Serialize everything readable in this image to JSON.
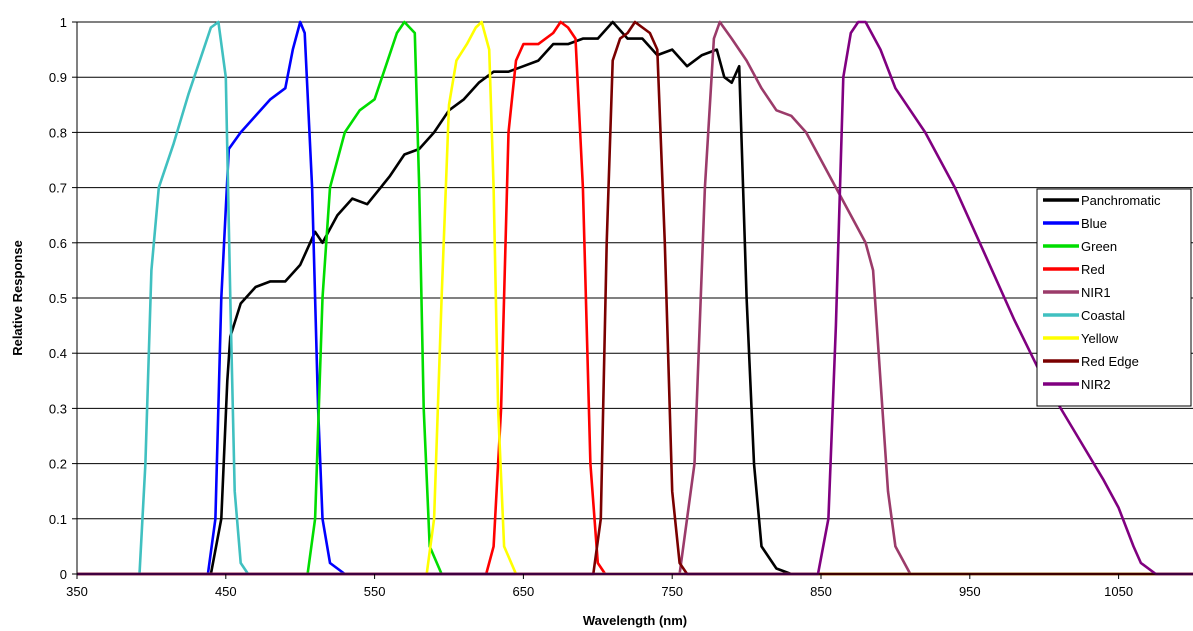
{
  "chart_data": {
    "type": "line",
    "title": "",
    "xlabel": "Wavelength (nm)",
    "ylabel": "Relative Response",
    "xlim": [
      350,
      1100
    ],
    "ylim": [
      0,
      1
    ],
    "x_ticks": [
      350,
      450,
      550,
      650,
      750,
      850,
      950,
      1050
    ],
    "y_ticks": [
      0,
      0.1,
      0.2,
      0.3,
      0.4,
      0.5,
      0.6,
      0.7,
      0.8,
      0.9,
      1
    ],
    "grid": "horizontal",
    "legend_position": "right",
    "series": [
      {
        "name": "Panchromatic",
        "color": "#000000",
        "points": [
          [
            350,
            0
          ],
          [
            440,
            0
          ],
          [
            447,
            0.1
          ],
          [
            451,
            0.35
          ],
          [
            453,
            0.43
          ],
          [
            460,
            0.49
          ],
          [
            470,
            0.52
          ],
          [
            480,
            0.53
          ],
          [
            490,
            0.53
          ],
          [
            500,
            0.56
          ],
          [
            510,
            0.62
          ],
          [
            515,
            0.6
          ],
          [
            525,
            0.65
          ],
          [
            535,
            0.68
          ],
          [
            545,
            0.67
          ],
          [
            560,
            0.72
          ],
          [
            570,
            0.76
          ],
          [
            580,
            0.77
          ],
          [
            590,
            0.8
          ],
          [
            600,
            0.84
          ],
          [
            610,
            0.86
          ],
          [
            620,
            0.89
          ],
          [
            630,
            0.91
          ],
          [
            640,
            0.91
          ],
          [
            650,
            0.92
          ],
          [
            660,
            0.93
          ],
          [
            670,
            0.96
          ],
          [
            680,
            0.96
          ],
          [
            690,
            0.97
          ],
          [
            700,
            0.97
          ],
          [
            710,
            1.0
          ],
          [
            720,
            0.97
          ],
          [
            730,
            0.97
          ],
          [
            740,
            0.94
          ],
          [
            750,
            0.95
          ],
          [
            760,
            0.92
          ],
          [
            770,
            0.94
          ],
          [
            780,
            0.95
          ],
          [
            785,
            0.9
          ],
          [
            790,
            0.89
          ],
          [
            795,
            0.92
          ],
          [
            800,
            0.5
          ],
          [
            805,
            0.2
          ],
          [
            810,
            0.05
          ],
          [
            820,
            0.01
          ],
          [
            830,
            0
          ],
          [
            1100,
            0
          ]
        ]
      },
      {
        "name": "Blue",
        "color": "#0000ff",
        "points": [
          [
            350,
            0
          ],
          [
            438,
            0
          ],
          [
            443,
            0.1
          ],
          [
            447,
            0.5
          ],
          [
            452,
            0.77
          ],
          [
            460,
            0.8
          ],
          [
            470,
            0.83
          ],
          [
            480,
            0.86
          ],
          [
            490,
            0.88
          ],
          [
            495,
            0.95
          ],
          [
            500,
            1.0
          ],
          [
            503,
            0.98
          ],
          [
            508,
            0.7
          ],
          [
            512,
            0.3
          ],
          [
            515,
            0.1
          ],
          [
            520,
            0.02
          ],
          [
            530,
            0
          ],
          [
            1100,
            0
          ]
        ]
      },
      {
        "name": "Green",
        "color": "#00dd00",
        "points": [
          [
            350,
            0
          ],
          [
            505,
            0
          ],
          [
            510,
            0.1
          ],
          [
            515,
            0.5
          ],
          [
            520,
            0.7
          ],
          [
            530,
            0.8
          ],
          [
            540,
            0.84
          ],
          [
            550,
            0.86
          ],
          [
            560,
            0.94
          ],
          [
            565,
            0.98
          ],
          [
            570,
            1.0
          ],
          [
            577,
            0.98
          ],
          [
            580,
            0.7
          ],
          [
            583,
            0.3
          ],
          [
            587,
            0.05
          ],
          [
            595,
            0
          ],
          [
            1100,
            0
          ]
        ]
      },
      {
        "name": "Red",
        "color": "#ff0000",
        "points": [
          [
            350,
            0
          ],
          [
            625,
            0
          ],
          [
            630,
            0.05
          ],
          [
            635,
            0.3
          ],
          [
            640,
            0.8
          ],
          [
            645,
            0.93
          ],
          [
            650,
            0.96
          ],
          [
            660,
            0.96
          ],
          [
            670,
            0.98
          ],
          [
            675,
            1.0
          ],
          [
            680,
            0.99
          ],
          [
            685,
            0.97
          ],
          [
            690,
            0.7
          ],
          [
            695,
            0.2
          ],
          [
            700,
            0.02
          ],
          [
            705,
            0
          ],
          [
            1100,
            0
          ]
        ]
      },
      {
        "name": "NIR1",
        "color": "#9b3b6a",
        "points": [
          [
            350,
            0
          ],
          [
            755,
            0
          ],
          [
            765,
            0.2
          ],
          [
            772,
            0.7
          ],
          [
            778,
            0.97
          ],
          [
            782,
            1.0
          ],
          [
            790,
            0.97
          ],
          [
            800,
            0.93
          ],
          [
            810,
            0.88
          ],
          [
            820,
            0.84
          ],
          [
            830,
            0.83
          ],
          [
            840,
            0.8
          ],
          [
            850,
            0.75
          ],
          [
            860,
            0.7
          ],
          [
            870,
            0.65
          ],
          [
            880,
            0.6
          ],
          [
            885,
            0.55
          ],
          [
            890,
            0.35
          ],
          [
            895,
            0.15
          ],
          [
            900,
            0.05
          ],
          [
            910,
            0
          ],
          [
            1100,
            0
          ]
        ]
      },
      {
        "name": "Coastal",
        "color": "#40c0c0",
        "points": [
          [
            350,
            0
          ],
          [
            392,
            0
          ],
          [
            396,
            0.2
          ],
          [
            400,
            0.55
          ],
          [
            405,
            0.7
          ],
          [
            415,
            0.78
          ],
          [
            425,
            0.87
          ],
          [
            435,
            0.95
          ],
          [
            440,
            0.99
          ],
          [
            445,
            1.0
          ],
          [
            450,
            0.9
          ],
          [
            453,
            0.5
          ],
          [
            456,
            0.15
          ],
          [
            460,
            0.02
          ],
          [
            465,
            0
          ],
          [
            1100,
            0
          ]
        ]
      },
      {
        "name": "Yellow",
        "color": "#ffff00",
        "points": [
          [
            350,
            0
          ],
          [
            585,
            0
          ],
          [
            590,
            0.1
          ],
          [
            595,
            0.5
          ],
          [
            600,
            0.85
          ],
          [
            605,
            0.93
          ],
          [
            612,
            0.96
          ],
          [
            618,
            0.99
          ],
          [
            622,
            1.0
          ],
          [
            627,
            0.95
          ],
          [
            630,
            0.7
          ],
          [
            633,
            0.3
          ],
          [
            637,
            0.05
          ],
          [
            645,
            0
          ],
          [
            1100,
            0
          ]
        ]
      },
      {
        "name": "Red Edge",
        "color": "#7a0000",
        "points": [
          [
            350,
            0
          ],
          [
            697,
            0
          ],
          [
            702,
            0.1
          ],
          [
            706,
            0.6
          ],
          [
            710,
            0.93
          ],
          [
            715,
            0.97
          ],
          [
            720,
            0.98
          ],
          [
            725,
            1.0
          ],
          [
            735,
            0.98
          ],
          [
            740,
            0.95
          ],
          [
            745,
            0.6
          ],
          [
            750,
            0.15
          ],
          [
            755,
            0.02
          ],
          [
            760,
            0
          ],
          [
            1100,
            0
          ]
        ]
      },
      {
        "name": "NIR2",
        "color": "#800080",
        "points": [
          [
            350,
            0
          ],
          [
            848,
            0
          ],
          [
            855,
            0.1
          ],
          [
            860,
            0.45
          ],
          [
            865,
            0.9
          ],
          [
            870,
            0.98
          ],
          [
            875,
            1.0
          ],
          [
            880,
            1.0
          ],
          [
            890,
            0.95
          ],
          [
            900,
            0.88
          ],
          [
            920,
            0.8
          ],
          [
            940,
            0.7
          ],
          [
            960,
            0.58
          ],
          [
            980,
            0.46
          ],
          [
            1000,
            0.35
          ],
          [
            1020,
            0.26
          ],
          [
            1040,
            0.17
          ],
          [
            1050,
            0.12
          ],
          [
            1060,
            0.05
          ],
          [
            1065,
            0.02
          ],
          [
            1075,
            0
          ],
          [
            1100,
            0
          ]
        ]
      }
    ]
  }
}
